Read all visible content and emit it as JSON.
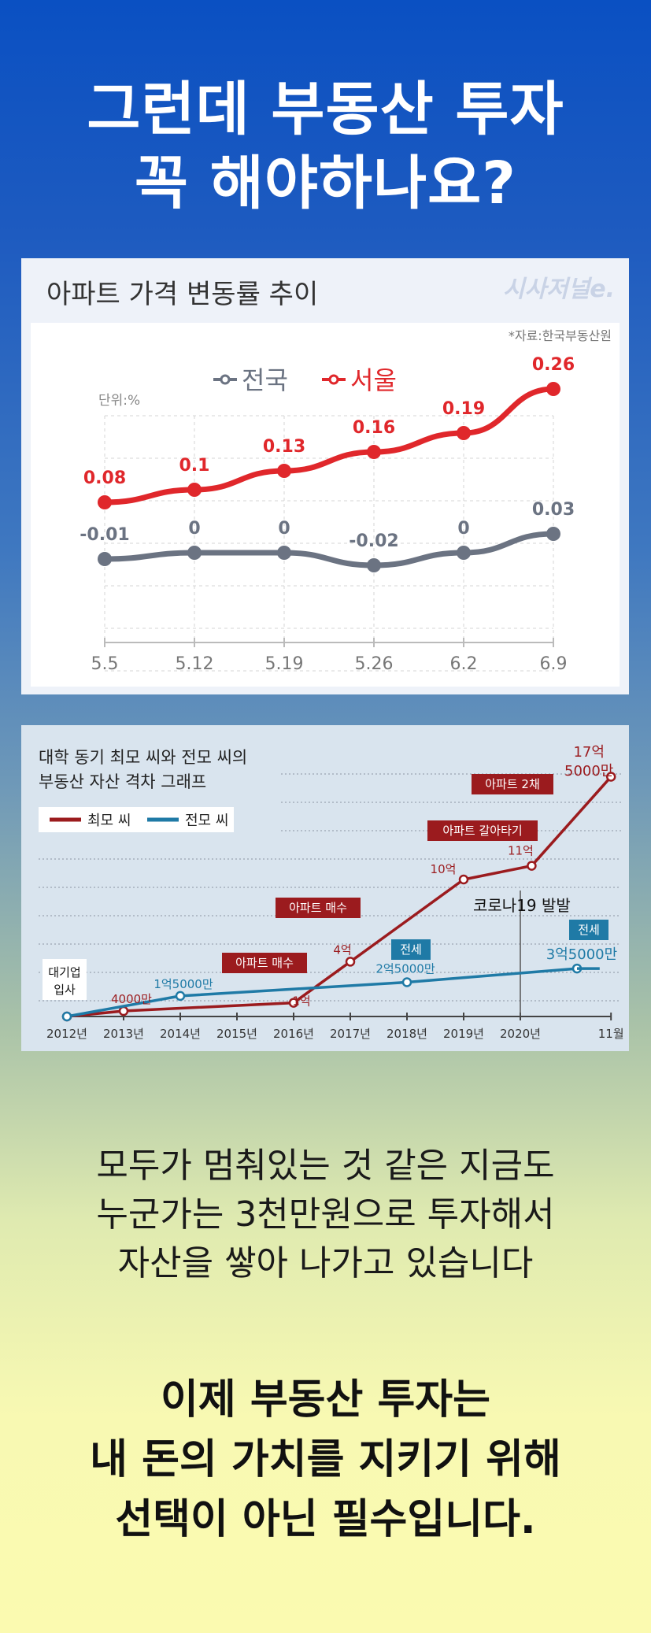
{
  "headline": [
    "그런데 부동산 투자",
    "꼭 해야하나요?"
  ],
  "chart1": {
    "title": "아파트 가격 변동률 추이",
    "watermark": "시사저널e.",
    "source": "*자료:한국부동산원",
    "unit": "단위:%",
    "colors": {
      "national": "#6b7382",
      "seoul": "#e0272b"
    }
  },
  "chart2": {
    "title": [
      "대학 동기 최모 씨와 전모 씨의",
      "부동산 자산 격차 그래프"
    ],
    "colors": {
      "choi": "#9b1b1e",
      "jeon": "#1f7aa6"
    },
    "annotations": {
      "start": [
        "대기업",
        "입사"
      ],
      "buy1": "아파트 매수",
      "buy2": "아파트 매수",
      "switch": "아파트 갈아타기",
      "two": "아파트 2채",
      "covid": "코로나19 발발",
      "jeonse1": "전세",
      "jeonse2": "전세"
    }
  },
  "chart_data": [
    {
      "type": "line",
      "title": "아파트 가격 변동률 추이",
      "categories": [
        "5.5",
        "5.12",
        "5.19",
        "5.26",
        "6.2",
        "6.9"
      ],
      "series": [
        {
          "name": "전국",
          "values": [
            -0.01,
            0,
            0,
            -0.02,
            0,
            0.03
          ],
          "labels": [
            "-0.01",
            "0",
            "0",
            "-0.02",
            "0",
            "0.03"
          ]
        },
        {
          "name": "서울",
          "values": [
            0.08,
            0.1,
            0.13,
            0.16,
            0.19,
            0.26
          ],
          "labels": [
            "0.08",
            "0.1",
            "0.13",
            "0.16",
            "0.19",
            "0.26"
          ]
        }
      ],
      "ylabel": "단위:%",
      "grid": true,
      "legend": "top"
    },
    {
      "type": "line",
      "title": "대학 동기 최모 씨와 전모 씨의 부동산 자산 격차 그래프",
      "categories": [
        "2012년",
        "2013년",
        "2014년",
        "2015년",
        "2016년",
        "2017년",
        "2018년",
        "2019년",
        "2020년",
        "11월"
      ],
      "series": [
        {
          "name": "최모 씨",
          "x": [
            0,
            1,
            4,
            5,
            7,
            8.2,
            9.6
          ],
          "values": [
            0,
            0.4,
            1,
            4,
            10,
            11,
            17.5
          ],
          "labels": [
            "",
            "4000만",
            "1억",
            "4억",
            "10억",
            "11억",
            "17억 5000만"
          ]
        },
        {
          "name": "전모 씨",
          "x": [
            0,
            2,
            6,
            9.0
          ],
          "values": [
            0,
            1.5,
            2.5,
            3.5
          ],
          "labels": [
            "",
            "1억5000만",
            "2억5000만",
            "3억5000만"
          ]
        }
      ],
      "legend": "top-left"
    }
  ],
  "body": [
    "모두가 멈춰있는 것 같은 지금도",
    "누군가는 3천만원으로 투자해서",
    "자산을 쌓아 나가고 있습니다"
  ],
  "conclusion": [
    "이제 부동산 투자는",
    "내 돈의 가치를 지키기 위해",
    "선택이 아닌 필수입니다."
  ]
}
